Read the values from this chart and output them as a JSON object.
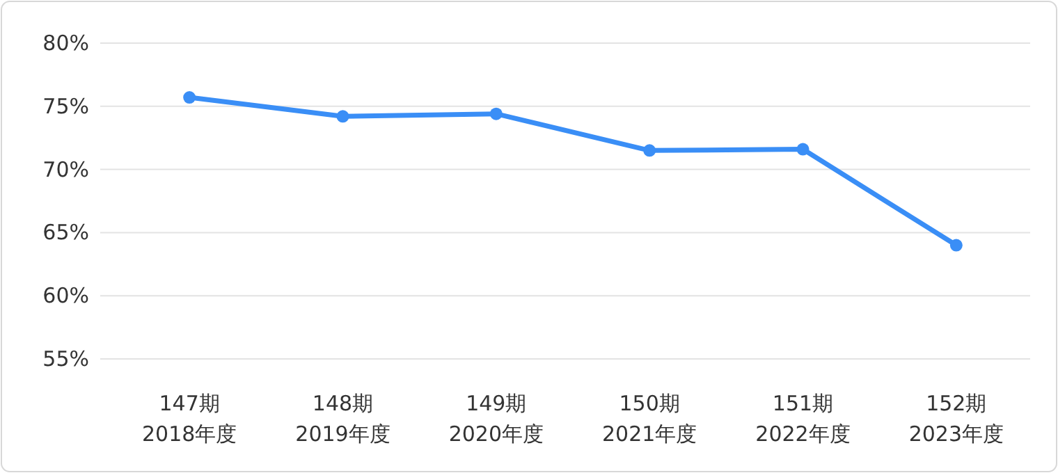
{
  "chart_data": {
    "type": "line",
    "categories": [
      "147期\n2018年度",
      "148期\n2019年度",
      "149期\n2020年度",
      "150期\n2021年度",
      "151期\n2022年度",
      "152期\n2023年度"
    ],
    "series": [
      {
        "color": "#3a8ef6",
        "values": [
          75.7,
          74.2,
          74.4,
          71.5,
          71.6,
          64.0
        ]
      }
    ],
    "ylim": [
      55,
      80
    ],
    "yticks": [
      {
        "value": 55,
        "label": "55%"
      },
      {
        "value": 60,
        "label": "60%"
      },
      {
        "value": 65,
        "label": "65%"
      },
      {
        "value": 70,
        "label": "70%"
      },
      {
        "value": 75,
        "label": "75%"
      },
      {
        "value": 80,
        "label": "80%"
      }
    ],
    "grid": "y",
    "marker": "circle",
    "line_style": "solid"
  }
}
